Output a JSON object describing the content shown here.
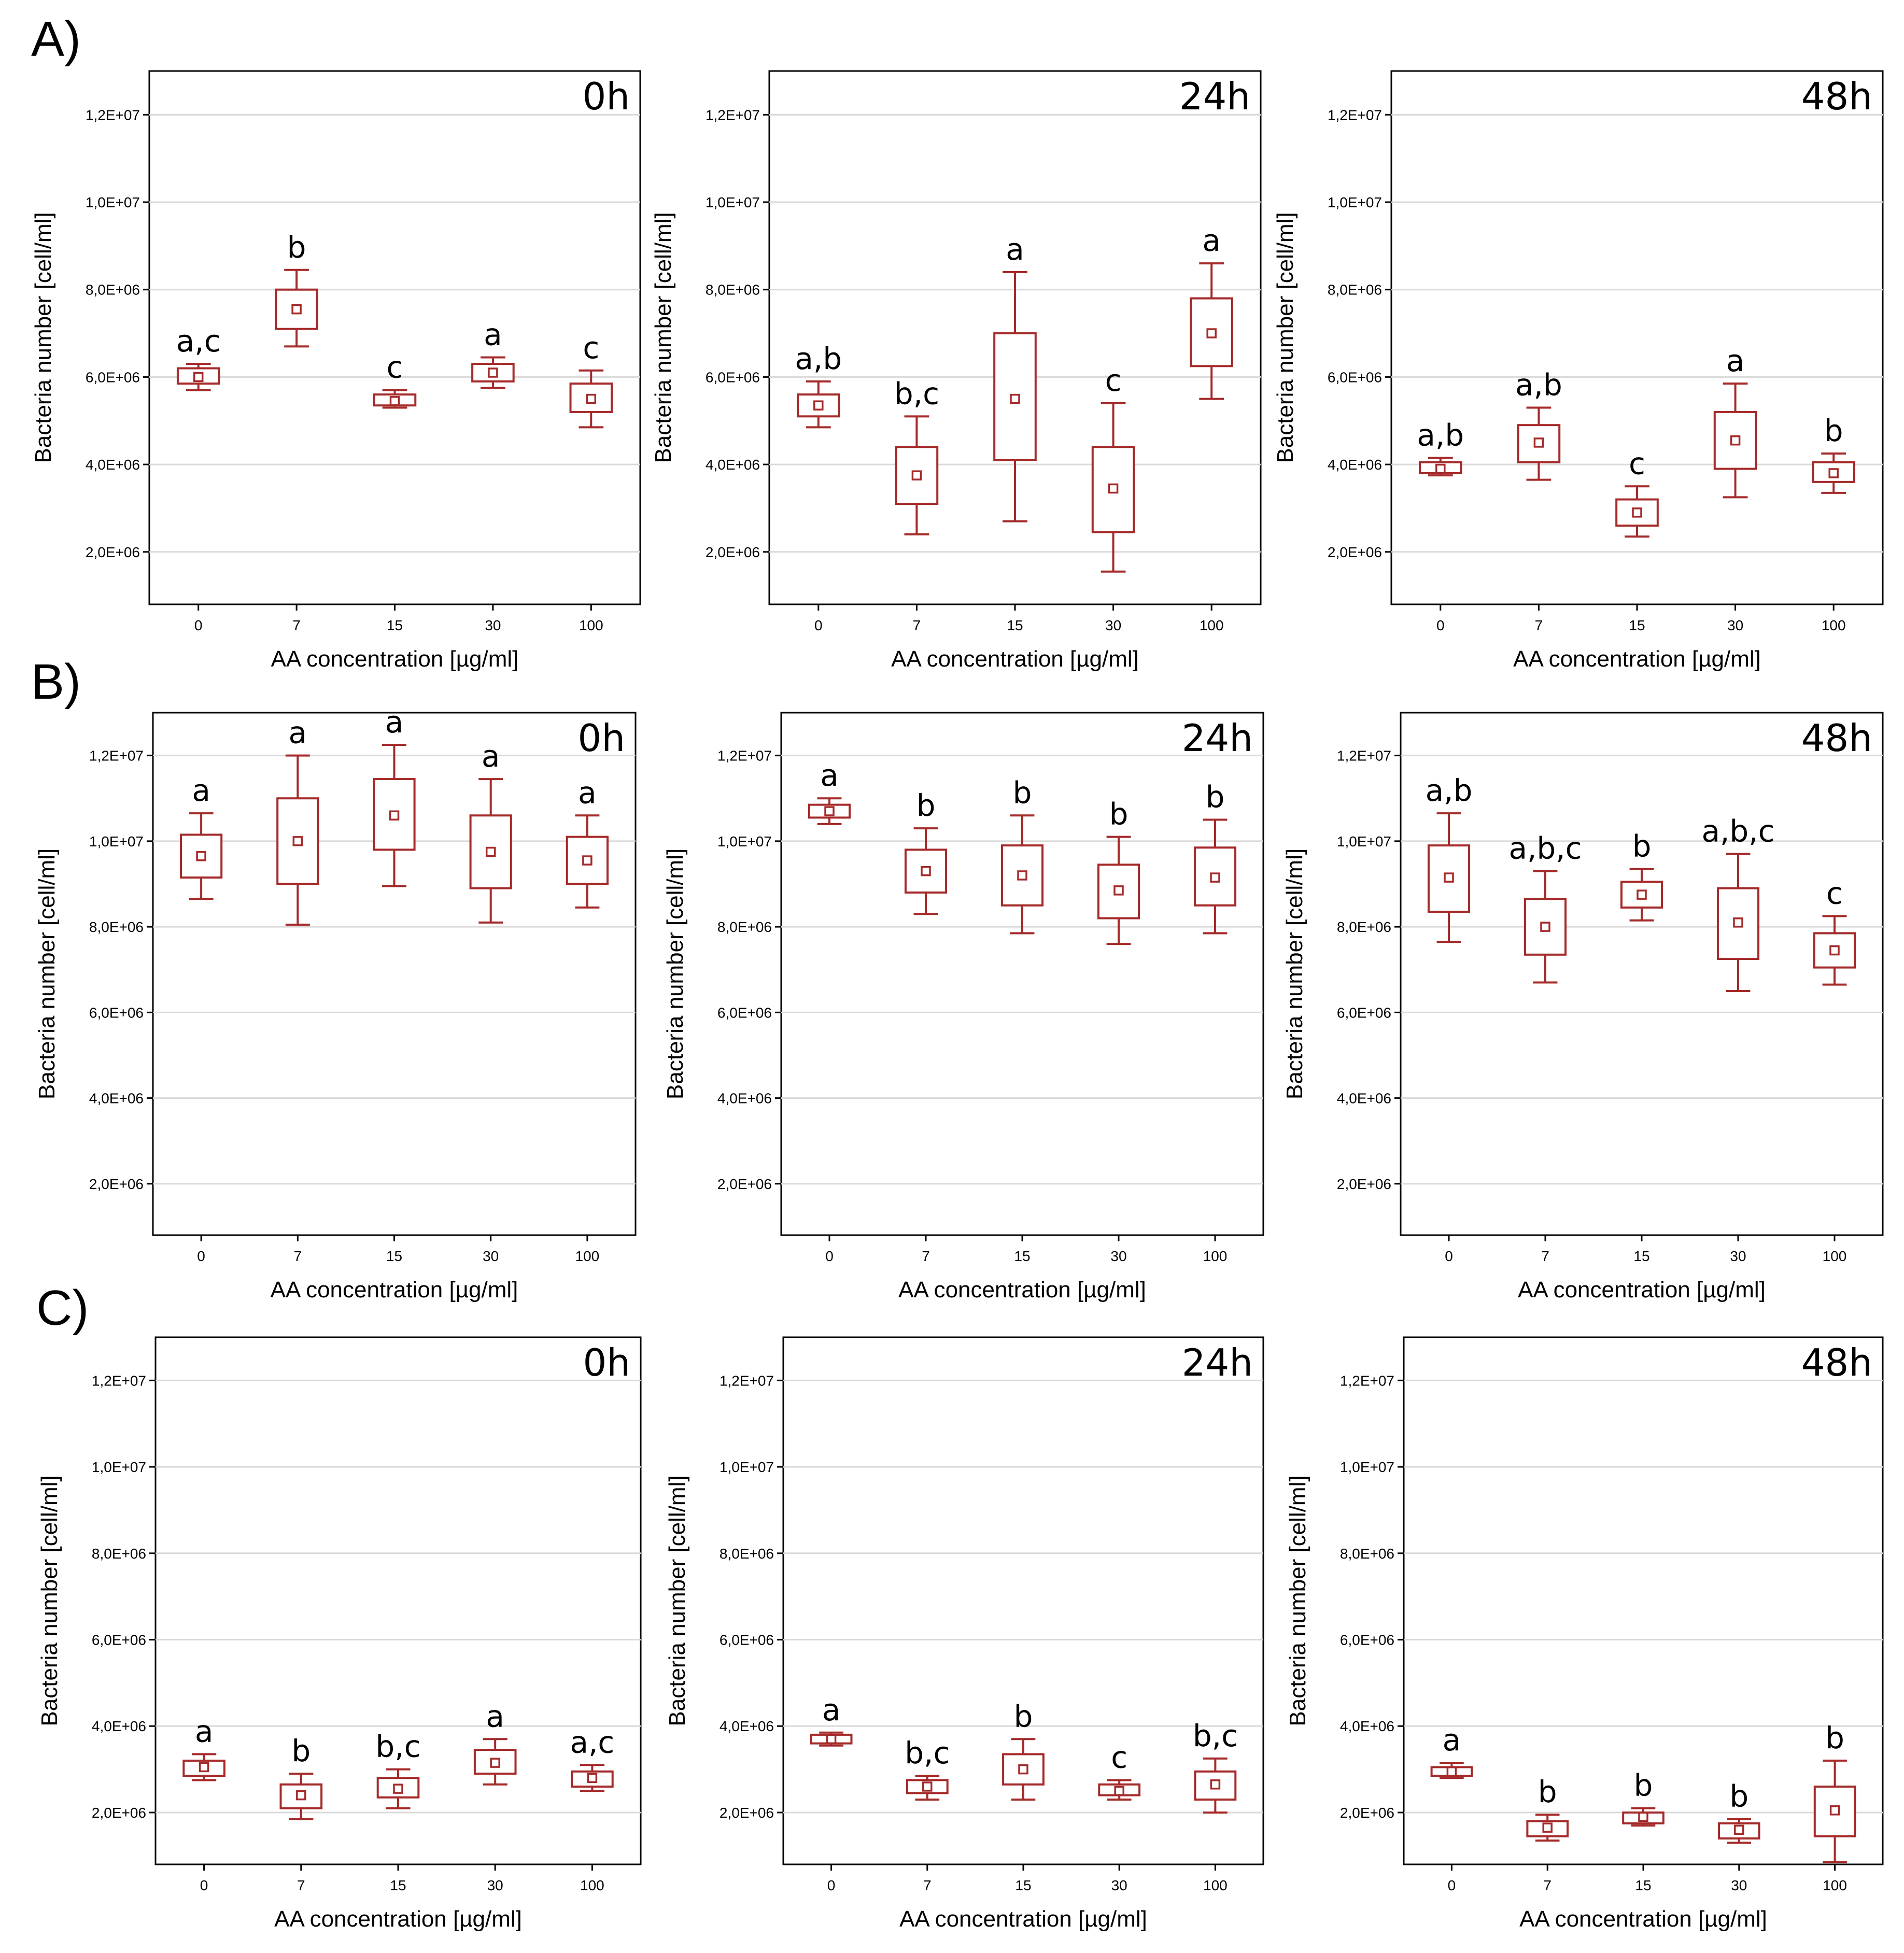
{
  "rows": [
    {
      "label": "A)"
    },
    {
      "label": "B)"
    },
    {
      "label": "C)"
    }
  ],
  "chart_data": [
    {
      "type": "box",
      "row": "A)",
      "title": "0h",
      "xlabel": "AA concentration [µg/ml]",
      "ylabel": "Bacteria number [cell/ml]",
      "categories": [
        "0",
        "7",
        "15",
        "30",
        "100"
      ],
      "ylim": [
        800000,
        13000000
      ],
      "yticks": [
        2000000,
        4000000,
        6000000,
        8000000,
        10000000,
        12000000
      ],
      "ytick_labels": [
        "2,0E+06",
        "4,0E+06",
        "6,0E+06",
        "8,0E+06",
        "1,0E+07",
        "1,2E+07"
      ],
      "boxes": [
        {
          "whisker_low": 5700000,
          "q1": 5850000,
          "mean": 6000000,
          "q3": 6200000,
          "whisker_high": 6300000,
          "group": "a,c"
        },
        {
          "whisker_low": 6700000,
          "q1": 7100000,
          "mean": 7550000,
          "q3": 8000000,
          "whisker_high": 8450000,
          "group": "b"
        },
        {
          "whisker_low": 5300000,
          "q1": 5350000,
          "mean": 5450000,
          "q3": 5600000,
          "whisker_high": 5700000,
          "group": "c"
        },
        {
          "whisker_low": 5750000,
          "q1": 5900000,
          "mean": 6100000,
          "q3": 6300000,
          "whisker_high": 6450000,
          "group": "a"
        },
        {
          "whisker_low": 4850000,
          "q1": 5200000,
          "mean": 5500000,
          "q3": 5850000,
          "whisker_high": 6150000,
          "group": "c"
        }
      ]
    },
    {
      "type": "box",
      "row": "A)",
      "title": "24h",
      "xlabel": "AA concentration [µg/ml]",
      "ylabel": "Bacteria number [cell/ml]",
      "categories": [
        "0",
        "7",
        "15",
        "30",
        "100"
      ],
      "ylim": [
        800000,
        13000000
      ],
      "yticks": [
        2000000,
        4000000,
        6000000,
        8000000,
        10000000,
        12000000
      ],
      "ytick_labels": [
        "2,0E+06",
        "4,0E+06",
        "6,0E+06",
        "8,0E+06",
        "1,0E+07",
        "1,2E+07"
      ],
      "boxes": [
        {
          "whisker_low": 4850000,
          "q1": 5100000,
          "mean": 5350000,
          "q3": 5600000,
          "whisker_high": 5900000,
          "group": "a,b"
        },
        {
          "whisker_low": 2400000,
          "q1": 3100000,
          "mean": 3750000,
          "q3": 4400000,
          "whisker_high": 5100000,
          "group": "b,c"
        },
        {
          "whisker_low": 2700000,
          "q1": 4100000,
          "mean": 5500000,
          "q3": 7000000,
          "whisker_high": 8400000,
          "group": "a"
        },
        {
          "whisker_low": 1550000,
          "q1": 2450000,
          "mean": 3450000,
          "q3": 4400000,
          "whisker_high": 5400000,
          "group": "c"
        },
        {
          "whisker_low": 5500000,
          "q1": 6250000,
          "mean": 7000000,
          "q3": 7800000,
          "whisker_high": 8600000,
          "group": "a"
        }
      ]
    },
    {
      "type": "box",
      "row": "A)",
      "title": "48h",
      "xlabel": "AA concentration [µg/ml]",
      "ylabel": "Bacteria number [cell/ml]",
      "categories": [
        "0",
        "7",
        "15",
        "30",
        "100"
      ],
      "ylim": [
        800000,
        13000000
      ],
      "yticks": [
        2000000,
        4000000,
        6000000,
        8000000,
        10000000,
        12000000
      ],
      "ytick_labels": [
        "2,0E+06",
        "4,0E+06",
        "6,0E+06",
        "8,0E+06",
        "1,0E+07",
        "1,2E+07"
      ],
      "boxes": [
        {
          "whisker_low": 3750000,
          "q1": 3800000,
          "mean": 3900000,
          "q3": 4050000,
          "whisker_high": 4150000,
          "group": "a,b"
        },
        {
          "whisker_low": 3650000,
          "q1": 4050000,
          "mean": 4500000,
          "q3": 4900000,
          "whisker_high": 5300000,
          "group": "a,b"
        },
        {
          "whisker_low": 2350000,
          "q1": 2600000,
          "mean": 2900000,
          "q3": 3200000,
          "whisker_high": 3500000,
          "group": "c"
        },
        {
          "whisker_low": 3250000,
          "q1": 3900000,
          "mean": 4550000,
          "q3": 5200000,
          "whisker_high": 5850000,
          "group": "a"
        },
        {
          "whisker_low": 3350000,
          "q1": 3600000,
          "mean": 3800000,
          "q3": 4050000,
          "whisker_high": 4250000,
          "group": "b"
        }
      ]
    },
    {
      "type": "box",
      "row": "B)",
      "title": "0h",
      "xlabel": "AA concentration [µg/ml]",
      "ylabel": "Bacteria number [cell/ml]",
      "categories": [
        "0",
        "7",
        "15",
        "30",
        "100"
      ],
      "ylim": [
        800000,
        13000000
      ],
      "yticks": [
        2000000,
        4000000,
        6000000,
        8000000,
        10000000,
        12000000
      ],
      "ytick_labels": [
        "2,0E+06",
        "4,0E+06",
        "6,0E+06",
        "8,0E+06",
        "1,0E+07",
        "1,2E+07"
      ],
      "boxes": [
        {
          "whisker_low": 8650000,
          "q1": 9150000,
          "mean": 9650000,
          "q3": 10150000,
          "whisker_high": 10650000,
          "group": "a"
        },
        {
          "whisker_low": 8050000,
          "q1": 9000000,
          "mean": 10000000,
          "q3": 11000000,
          "whisker_high": 12000000,
          "group": "a"
        },
        {
          "whisker_low": 8950000,
          "q1": 9800000,
          "mean": 10600000,
          "q3": 11450000,
          "whisker_high": 12250000,
          "group": "a"
        },
        {
          "whisker_low": 8100000,
          "q1": 8900000,
          "mean": 9750000,
          "q3": 10600000,
          "whisker_high": 11450000,
          "group": "a"
        },
        {
          "whisker_low": 8450000,
          "q1": 9000000,
          "mean": 9550000,
          "q3": 10100000,
          "whisker_high": 10600000,
          "group": "a"
        }
      ]
    },
    {
      "type": "box",
      "row": "B)",
      "title": "24h",
      "xlabel": "AA concentration [µg/ml]",
      "ylabel": "Bacteria number [cell/ml]",
      "categories": [
        "0",
        "7",
        "15",
        "30",
        "100"
      ],
      "ylim": [
        800000,
        13000000
      ],
      "yticks": [
        2000000,
        4000000,
        6000000,
        8000000,
        10000000,
        12000000
      ],
      "ytick_labels": [
        "2,0E+06",
        "4,0E+06",
        "6,0E+06",
        "8,0E+06",
        "1,0E+07",
        "1,2E+07"
      ],
      "boxes": [
        {
          "whisker_low": 10400000,
          "q1": 10550000,
          "mean": 10700000,
          "q3": 10850000,
          "whisker_high": 11000000,
          "group": "a"
        },
        {
          "whisker_low": 8300000,
          "q1": 8800000,
          "mean": 9300000,
          "q3": 9800000,
          "whisker_high": 10300000,
          "group": "b"
        },
        {
          "whisker_low": 7850000,
          "q1": 8500000,
          "mean": 9200000,
          "q3": 9900000,
          "whisker_high": 10600000,
          "group": "b"
        },
        {
          "whisker_low": 7600000,
          "q1": 8200000,
          "mean": 8850000,
          "q3": 9450000,
          "whisker_high": 10100000,
          "group": "b"
        },
        {
          "whisker_low": 7850000,
          "q1": 8500000,
          "mean": 9150000,
          "q3": 9850000,
          "whisker_high": 10500000,
          "group": "b"
        }
      ]
    },
    {
      "type": "box",
      "row": "B)",
      "title": "48h",
      "xlabel": "AA concentration [µg/ml]",
      "ylabel": "Bacteria number [cell/ml]",
      "categories": [
        "0",
        "7",
        "15",
        "30",
        "100"
      ],
      "ylim": [
        800000,
        13000000
      ],
      "yticks": [
        2000000,
        4000000,
        6000000,
        8000000,
        10000000,
        12000000
      ],
      "ytick_labels": [
        "2,0E+06",
        "4,0E+06",
        "6,0E+06",
        "8,0E+06",
        "1,0E+07",
        "1,2E+07"
      ],
      "boxes": [
        {
          "whisker_low": 7650000,
          "q1": 8350000,
          "mean": 9150000,
          "q3": 9900000,
          "whisker_high": 10650000,
          "group": "a,b"
        },
        {
          "whisker_low": 6700000,
          "q1": 7350000,
          "mean": 8000000,
          "q3": 8650000,
          "whisker_high": 9300000,
          "group": "a,b,c"
        },
        {
          "whisker_low": 8150000,
          "q1": 8450000,
          "mean": 8750000,
          "q3": 9050000,
          "whisker_high": 9350000,
          "group": "b"
        },
        {
          "whisker_low": 6500000,
          "q1": 7250000,
          "mean": 8100000,
          "q3": 8900000,
          "whisker_high": 9700000,
          "group": "a,b,c"
        },
        {
          "whisker_low": 6650000,
          "q1": 7050000,
          "mean": 7450000,
          "q3": 7850000,
          "whisker_high": 8250000,
          "group": "c"
        }
      ]
    },
    {
      "type": "box",
      "row": "C)",
      "title": "0h",
      "xlabel": "AA concentration [µg/ml]",
      "ylabel": "Bacteria number [cell/ml]",
      "categories": [
        "0",
        "7",
        "15",
        "30",
        "100"
      ],
      "ylim": [
        800000,
        13000000
      ],
      "yticks": [
        2000000,
        4000000,
        6000000,
        8000000,
        10000000,
        12000000
      ],
      "ytick_labels": [
        "2,0E+06",
        "4,0E+06",
        "6,0E+06",
        "8,0E+06",
        "1,0E+07",
        "1,2E+07"
      ],
      "boxes": [
        {
          "whisker_low": 2750000,
          "q1": 2850000,
          "mean": 3050000,
          "q3": 3200000,
          "whisker_high": 3350000,
          "group": "a"
        },
        {
          "whisker_low": 1850000,
          "q1": 2100000,
          "mean": 2400000,
          "q3": 2650000,
          "whisker_high": 2900000,
          "group": "b"
        },
        {
          "whisker_low": 2100000,
          "q1": 2350000,
          "mean": 2550000,
          "q3": 2800000,
          "whisker_high": 3000000,
          "group": "b,c"
        },
        {
          "whisker_low": 2650000,
          "q1": 2900000,
          "mean": 3150000,
          "q3": 3450000,
          "whisker_high": 3700000,
          "group": "a"
        },
        {
          "whisker_low": 2500000,
          "q1": 2600000,
          "mean": 2800000,
          "q3": 2950000,
          "whisker_high": 3100000,
          "group": "a,c"
        }
      ]
    },
    {
      "type": "box",
      "row": "C)",
      "title": "24h",
      "xlabel": "AA concentration [µg/ml]",
      "ylabel": "Bacteria number [cell/ml]",
      "categories": [
        "0",
        "7",
        "15",
        "30",
        "100"
      ],
      "ylim": [
        800000,
        13000000
      ],
      "yticks": [
        2000000,
        4000000,
        6000000,
        8000000,
        10000000,
        12000000
      ],
      "ytick_labels": [
        "2,0E+06",
        "4,0E+06",
        "6,0E+06",
        "8,0E+06",
        "1,0E+07",
        "1,2E+07"
      ],
      "boxes": [
        {
          "whisker_low": 3550000,
          "q1": 3600000,
          "mean": 3700000,
          "q3": 3800000,
          "whisker_high": 3850000,
          "group": "a"
        },
        {
          "whisker_low": 2300000,
          "q1": 2450000,
          "mean": 2600000,
          "q3": 2750000,
          "whisker_high": 2850000,
          "group": "b,c"
        },
        {
          "whisker_low": 2300000,
          "q1": 2650000,
          "mean": 3000000,
          "q3": 3350000,
          "whisker_high": 3700000,
          "group": "b"
        },
        {
          "whisker_low": 2300000,
          "q1": 2400000,
          "mean": 2500000,
          "q3": 2650000,
          "whisker_high": 2750000,
          "group": "c"
        },
        {
          "whisker_low": 2000000,
          "q1": 2300000,
          "mean": 2650000,
          "q3": 2950000,
          "whisker_high": 3250000,
          "group": "b,c"
        }
      ]
    },
    {
      "type": "box",
      "row": "C)",
      "title": "48h",
      "xlabel": "AA concentration [µg/ml]",
      "ylabel": "Bacteria number [cell/ml]",
      "categories": [
        "0",
        "7",
        "15",
        "30",
        "100"
      ],
      "ylim": [
        800000,
        13000000
      ],
      "yticks": [
        2000000,
        4000000,
        6000000,
        8000000,
        10000000,
        12000000
      ],
      "ytick_labels": [
        "2,0E+06",
        "4,0E+06",
        "6,0E+06",
        "8,0E+06",
        "1,0E+07",
        "1,2E+07"
      ],
      "boxes": [
        {
          "whisker_low": 2800000,
          "q1": 2850000,
          "mean": 2950000,
          "q3": 3050000,
          "whisker_high": 3150000,
          "group": "a"
        },
        {
          "whisker_low": 1350000,
          "q1": 1450000,
          "mean": 1650000,
          "q3": 1800000,
          "whisker_high": 1950000,
          "group": "b"
        },
        {
          "whisker_low": 1700000,
          "q1": 1750000,
          "mean": 1900000,
          "q3": 2000000,
          "whisker_high": 2100000,
          "group": "b"
        },
        {
          "whisker_low": 1300000,
          "q1": 1400000,
          "mean": 1600000,
          "q3": 1750000,
          "whisker_high": 1850000,
          "group": "b"
        },
        {
          "whisker_low": 850000,
          "q1": 1450000,
          "mean": 2050000,
          "q3": 2600000,
          "whisker_high": 3200000,
          "group": "b"
        }
      ]
    }
  ]
}
